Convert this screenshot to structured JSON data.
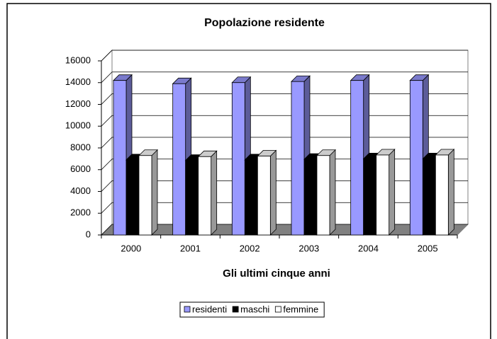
{
  "chart_data": {
    "type": "bar",
    "three_d": true,
    "title": "Popolazione residente",
    "x_label": "Gli ultimi cinque anni",
    "categories": [
      "2000",
      "2001",
      "2002",
      "2003",
      "2004",
      "2005"
    ],
    "series": [
      {
        "name": "residenti",
        "color": "#9999ff",
        "values": [
          14200,
          13900,
          14000,
          14100,
          14200,
          14200
        ]
      },
      {
        "name": "maschi",
        "color": "#000000",
        "values": [
          6900,
          6850,
          6900,
          6950,
          7000,
          7000
        ]
      },
      {
        "name": "femmine",
        "color": "#ffffff",
        "values": [
          7300,
          7200,
          7250,
          7300,
          7350,
          7350
        ]
      }
    ],
    "ylim": [
      0,
      16000
    ],
    "yticks": [
      0,
      2000,
      4000,
      6000,
      8000,
      10000,
      12000,
      14000,
      16000
    ],
    "grid": true,
    "legend": "bottom"
  }
}
